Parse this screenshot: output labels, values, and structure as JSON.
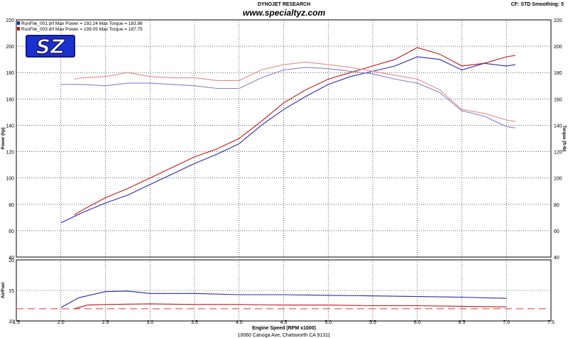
{
  "header": {
    "brand": "DYNOJET RESEARCH",
    "url": "www.specialtyz.com",
    "settings": "CF: STD  Smoothing: 5",
    "logo_text": "SZ"
  },
  "footer": {
    "xlabel": "Engine Speed (RPM x1000)",
    "address": "10060 Canoga Ave, Chatsworth CA 91311"
  },
  "legend": [
    {
      "text": "RunFile_001.drf Max Power = 192.24   Max Torque = 183.96",
      "color": "#2a2aa8"
    },
    {
      "text": "RunFile_003.drf Max Power = 199.05   Max Torque = 187.75",
      "color": "#c01818"
    }
  ],
  "chart_data": [
    {
      "type": "line",
      "ylabel_left": "Power (hp)",
      "ylabel_right": "Torque (ft-lb)",
      "xlim": [
        1.5,
        7.5
      ],
      "ylim": [
        40,
        220
      ],
      "x_ticks": [
        "1.5",
        "2.0",
        "2.5",
        "3.0",
        "3.5",
        "4.0",
        "4.5",
        "5.0",
        "5.5",
        "6.0",
        "6.5",
        "7.0",
        "7.5"
      ],
      "y_ticks": [
        "40",
        "60",
        "80",
        "100",
        "120",
        "140",
        "160",
        "180",
        "200",
        "220"
      ],
      "grid": true,
      "series": [
        {
          "name": "RunFile_001.drf",
          "measure": "power",
          "color": "#2a2aa8",
          "x": [
            2.0,
            2.25,
            2.5,
            2.75,
            3.0,
            3.25,
            3.5,
            3.75,
            4.0,
            4.25,
            4.5,
            4.75,
            5.0,
            5.25,
            5.5,
            5.75,
            6.0,
            6.25,
            6.5,
            6.75,
            7.0,
            7.1
          ],
          "y": [
            66,
            74,
            81,
            87,
            95,
            103,
            111,
            118,
            126,
            140,
            152,
            162,
            171,
            177,
            181,
            185,
            192,
            190,
            182,
            187,
            185,
            186
          ]
        },
        {
          "name": "RunFile_003.drf",
          "measure": "power",
          "color": "#c01818",
          "x": [
            2.15,
            2.25,
            2.5,
            2.75,
            3.0,
            3.25,
            3.5,
            3.75,
            4.0,
            4.25,
            4.5,
            4.75,
            5.0,
            5.25,
            5.5,
            5.75,
            6.0,
            6.25,
            6.5,
            6.75,
            7.0,
            7.1
          ],
          "y": [
            72,
            76,
            85,
            92,
            100,
            108,
            116,
            122,
            130,
            143,
            157,
            167,
            175,
            180,
            185,
            190,
            199,
            194,
            185,
            187,
            192,
            193
          ]
        },
        {
          "name": "RunFile_001.drf",
          "measure": "torque",
          "color": "#8a7fc8",
          "x": [
            2.0,
            2.25,
            2.5,
            2.75,
            3.0,
            3.25,
            3.5,
            3.75,
            4.0,
            4.25,
            4.5,
            4.75,
            5.0,
            5.25,
            5.5,
            5.75,
            6.0,
            6.25,
            6.5,
            6.75,
            7.0,
            7.1
          ],
          "y": [
            171,
            171,
            170,
            172,
            172,
            171,
            170,
            168,
            168,
            176,
            182,
            184,
            183,
            181,
            179,
            175,
            172,
            165,
            151,
            147,
            139,
            138
          ]
        },
        {
          "name": "RunFile_003.drf",
          "measure": "torque",
          "color": "#e68a8a",
          "x": [
            2.15,
            2.25,
            2.5,
            2.75,
            3.0,
            3.25,
            3.5,
            3.75,
            4.0,
            4.25,
            4.5,
            4.75,
            5.0,
            5.25,
            5.5,
            5.75,
            6.0,
            6.25,
            6.5,
            6.75,
            7.0,
            7.1
          ],
          "y": [
            175,
            176,
            177,
            180,
            177,
            176,
            176,
            174,
            174,
            182,
            186,
            188,
            186,
            184,
            181,
            178,
            175,
            167,
            152,
            149,
            144,
            143
          ]
        }
      ]
    },
    {
      "type": "line",
      "ylabel": "Air/Fuel",
      "xlim": [
        1.5,
        7.5
      ],
      "ylim": [
        10,
        20
      ],
      "y_ticks": [
        "10",
        "15",
        "20"
      ],
      "grid": true,
      "reference_line": {
        "y": 12,
        "color": "#e05050",
        "style": "dashed"
      },
      "series": [
        {
          "name": "RunFile_001.drf",
          "color": "#2a2aa8",
          "x": [
            2.0,
            2.2,
            2.5,
            2.75,
            3.0,
            3.5,
            4.0,
            4.5,
            5.0,
            5.5,
            6.0,
            6.5,
            7.0
          ],
          "y": [
            12.2,
            13.8,
            14.8,
            14.9,
            14.5,
            14.5,
            14.3,
            14.3,
            14.2,
            14.1,
            14.0,
            13.9,
            13.7
          ]
        },
        {
          "name": "RunFile_003.drf",
          "color": "#c01818",
          "x": [
            2.15,
            2.3,
            2.5,
            3.0,
            3.5,
            4.0,
            4.5,
            5.0,
            5.5,
            6.0,
            6.5,
            7.0
          ],
          "y": [
            12.0,
            12.6,
            12.7,
            12.8,
            12.7,
            12.7,
            12.6,
            12.6,
            12.5,
            12.5,
            12.4,
            12.3
          ]
        }
      ]
    }
  ]
}
